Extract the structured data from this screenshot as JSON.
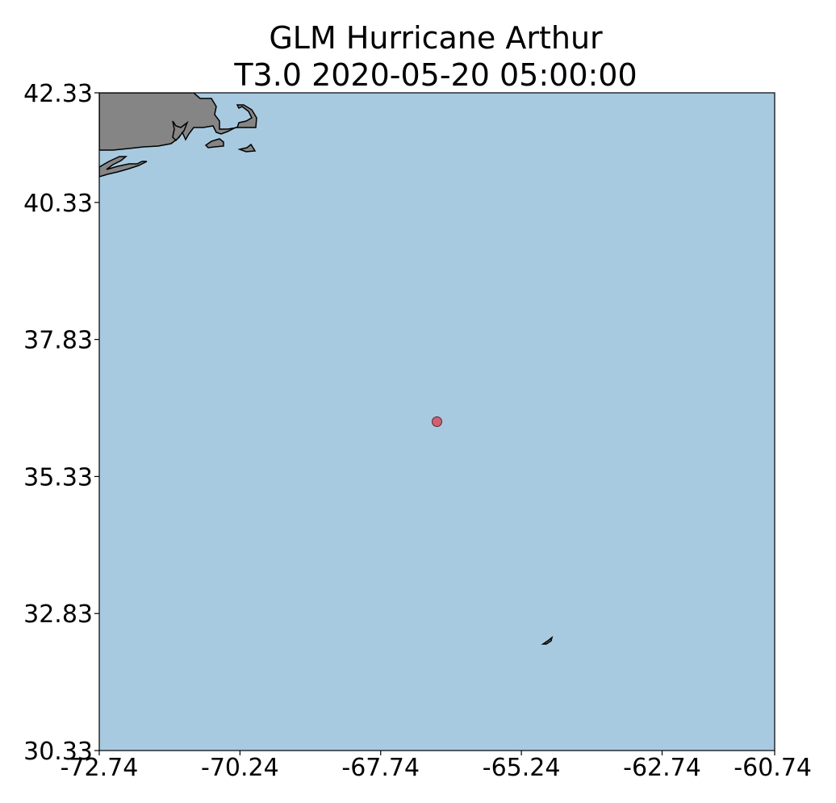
{
  "title": {
    "line1": "GLM Hurricane Arthur",
    "line2": "T3.0 2020-05-20 05:00:00"
  },
  "colors": {
    "ocean": "#a7cae0",
    "land": "#858585",
    "coastline": "#000000",
    "marker_fill": "#d06170",
    "marker_edge": "#5a2a30"
  },
  "map_data": {
    "type": "scatter",
    "x_ticks": [
      "-72.74",
      "-70.24",
      "-67.74",
      "-65.24",
      "-62.74",
      "-60.74"
    ],
    "y_ticks": [
      "42.33",
      "40.33",
      "37.83",
      "35.33",
      "32.83",
      "30.33"
    ],
    "xlim": [
      -72.74,
      -60.74
    ],
    "ylim": [
      30.33,
      42.33
    ],
    "points": [
      {
        "lon": -66.74,
        "lat": 36.33
      }
    ]
  }
}
